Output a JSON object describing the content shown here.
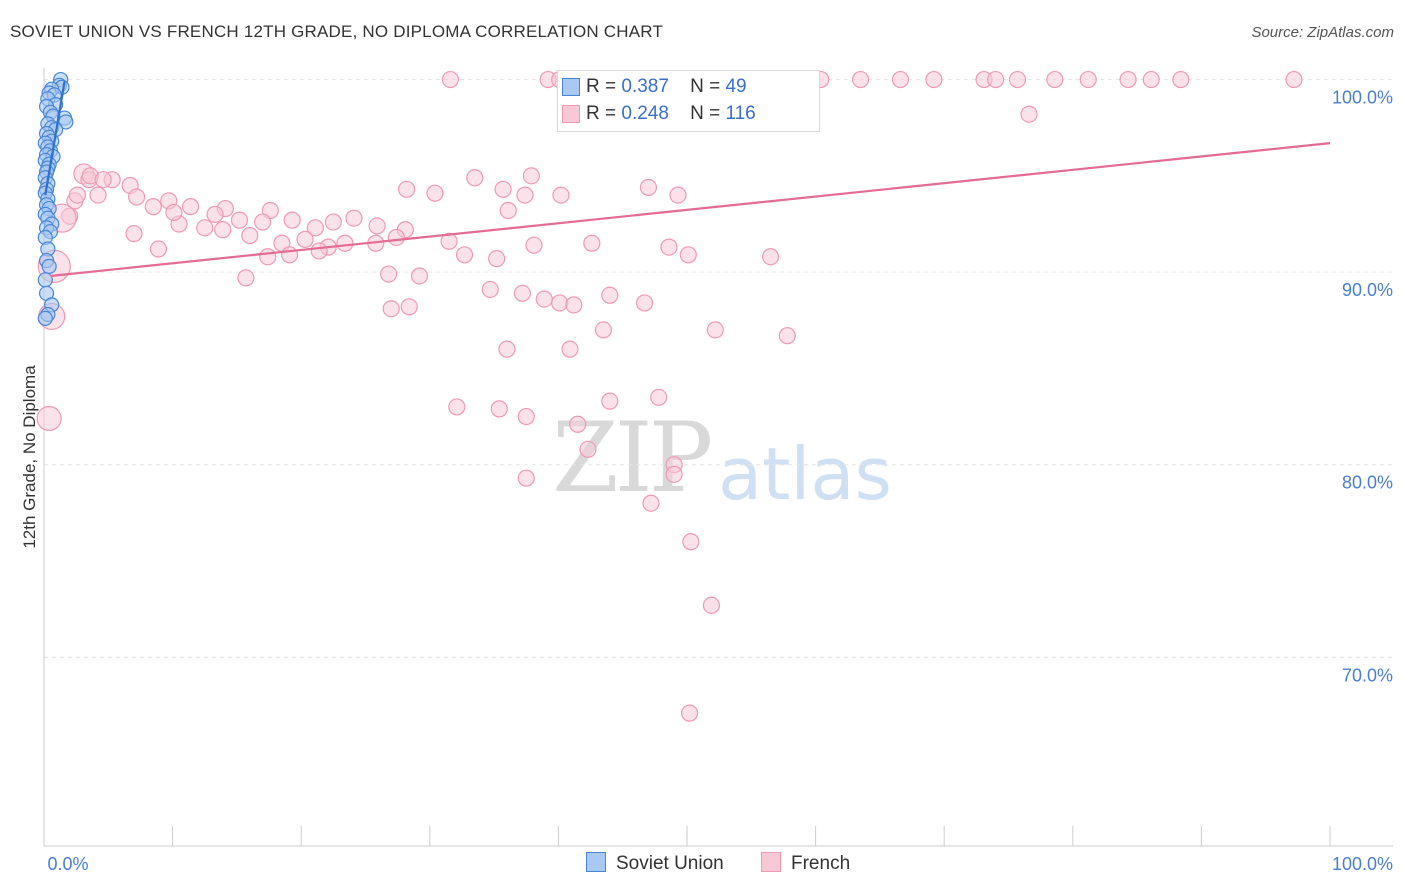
{
  "title": "SOVIET UNION VS FRENCH 12TH GRADE, NO DIPLOMA CORRELATION CHART",
  "source": "Source: ZipAtlas.com",
  "watermark": {
    "zip": "ZIP",
    "atlas": "atlas"
  },
  "legend": {
    "r_label": "R =",
    "n_label": "N =",
    "soviet": {
      "r": "0.387",
      "n": "49"
    },
    "french": {
      "r": "0.248",
      "n": "116"
    }
  },
  "bottom_legend": {
    "soviet": "Soviet Union",
    "french": "French"
  },
  "colors": {
    "soviet_fill": "#a9c8f2",
    "soviet_stroke": "#4a86d8",
    "soviet_line": "#2f6fd0",
    "french_fill": "#f7c9d7",
    "french_stroke": "#ee9ab4",
    "french_line": "#e46b93",
    "tick_label": "#4a7fd0",
    "grid": "#e6e6e6"
  },
  "chart_data": {
    "type": "scatter",
    "title": "SOVIET UNION VS FRENCH 12TH GRADE, NO DIPLOMA CORRELATION CHART",
    "xlabel": "",
    "ylabel": "12th Grade, No Diploma",
    "x_range": [
      0,
      100
    ],
    "y_range": [
      60.2,
      100.6
    ],
    "x_tick_labels": [
      "0.0%",
      "100.0%"
    ],
    "y_ticks": [
      {
        "value": 100,
        "label": "100.0%"
      },
      {
        "value": 90,
        "label": "90.0%"
      },
      {
        "value": 80,
        "label": "80.0%"
      },
      {
        "value": 70,
        "label": "70.0%"
      }
    ],
    "series": [
      {
        "name": "Soviet Union",
        "trend": {
          "x": [
            0.1,
            1.6
          ],
          "y": [
            94.0,
            99.9
          ]
        },
        "points": [
          [
            1.3,
            100.0
          ],
          [
            1.2,
            99.7
          ],
          [
            1.4,
            99.6
          ],
          [
            0.6,
            99.5
          ],
          [
            0.4,
            99.3
          ],
          [
            0.8,
            99.2
          ],
          [
            0.3,
            99.0
          ],
          [
            0.9,
            98.7
          ],
          [
            0.2,
            98.6
          ],
          [
            0.5,
            98.3
          ],
          [
            0.7,
            98.1
          ],
          [
            1.6,
            98.0
          ],
          [
            1.7,
            97.8
          ],
          [
            0.3,
            97.7
          ],
          [
            0.6,
            97.5
          ],
          [
            0.9,
            97.4
          ],
          [
            0.2,
            97.2
          ],
          [
            0.4,
            97.0
          ],
          [
            0.6,
            96.8
          ],
          [
            0.1,
            96.7
          ],
          [
            0.3,
            96.5
          ],
          [
            0.5,
            96.3
          ],
          [
            0.2,
            96.1
          ],
          [
            0.7,
            96.0
          ],
          [
            0.1,
            95.8
          ],
          [
            0.4,
            95.6
          ],
          [
            0.3,
            95.4
          ],
          [
            0.2,
            95.2
          ],
          [
            0.1,
            94.9
          ],
          [
            0.3,
            94.6
          ],
          [
            0.2,
            94.3
          ],
          [
            0.1,
            94.1
          ],
          [
            0.3,
            93.8
          ],
          [
            0.2,
            93.5
          ],
          [
            0.4,
            93.3
          ],
          [
            0.1,
            93.0
          ],
          [
            0.3,
            92.8
          ],
          [
            0.6,
            92.5
          ],
          [
            0.2,
            92.3
          ],
          [
            0.5,
            92.1
          ],
          [
            0.1,
            91.8
          ],
          [
            0.3,
            91.2
          ],
          [
            0.2,
            90.6
          ],
          [
            0.4,
            90.3
          ],
          [
            0.1,
            89.6
          ],
          [
            0.2,
            88.9
          ],
          [
            0.6,
            88.3
          ],
          [
            0.3,
            87.8
          ],
          [
            0.1,
            87.6
          ]
        ]
      },
      {
        "name": "French",
        "trend": {
          "x": [
            0.5,
            100
          ],
          "y": [
            89.8,
            96.7
          ]
        },
        "points": [
          [
            31.6,
            100.0
          ],
          [
            39.2,
            100.0
          ],
          [
            40.1,
            100.0
          ],
          [
            45.4,
            100.0
          ],
          [
            47.0,
            100.0
          ],
          [
            49.6,
            100.0
          ],
          [
            53.9,
            100.0
          ],
          [
            57.0,
            100.0
          ],
          [
            60.4,
            100.0
          ],
          [
            63.5,
            100.0
          ],
          [
            66.6,
            100.0
          ],
          [
            69.2,
            100.0
          ],
          [
            73.1,
            100.0
          ],
          [
            74.0,
            100.0
          ],
          [
            75.7,
            100.0
          ],
          [
            78.6,
            100.0
          ],
          [
            81.2,
            100.0
          ],
          [
            84.3,
            100.0
          ],
          [
            86.1,
            100.0
          ],
          [
            88.4,
            100.0
          ],
          [
            97.2,
            100.0
          ],
          [
            76.6,
            98.2
          ],
          [
            33.5,
            94.9
          ],
          [
            37.9,
            95.0
          ],
          [
            35.7,
            94.3
          ],
          [
            47.0,
            94.4
          ],
          [
            49.3,
            94.0
          ],
          [
            40.2,
            94.0
          ],
          [
            37.4,
            94.0
          ],
          [
            28.2,
            94.3
          ],
          [
            30.4,
            94.1
          ],
          [
            36.1,
            93.2
          ],
          [
            14.1,
            93.3
          ],
          [
            17.6,
            93.2
          ],
          [
            11.4,
            93.4
          ],
          [
            8.5,
            93.4
          ],
          [
            13.3,
            93.0
          ],
          [
            15.2,
            92.7
          ],
          [
            17.0,
            92.6
          ],
          [
            19.3,
            92.7
          ],
          [
            21.1,
            92.3
          ],
          [
            22.5,
            92.6
          ],
          [
            24.1,
            92.8
          ],
          [
            25.9,
            92.4
          ],
          [
            28.1,
            92.2
          ],
          [
            6.7,
            94.5
          ],
          [
            5.3,
            94.8
          ],
          [
            7.2,
            93.9
          ],
          [
            9.7,
            93.7
          ],
          [
            4.2,
            94.0
          ],
          [
            3.1,
            95.1
          ],
          [
            3.5,
            94.8
          ],
          [
            2.4,
            93.7
          ],
          [
            2.0,
            92.9
          ],
          [
            7.0,
            92.0
          ],
          [
            12.5,
            92.3
          ],
          [
            10.5,
            92.5
          ],
          [
            13.9,
            92.2
          ],
          [
            16.0,
            91.9
          ],
          [
            18.5,
            91.5
          ],
          [
            20.3,
            91.7
          ],
          [
            22.1,
            91.3
          ],
          [
            23.4,
            91.5
          ],
          [
            25.8,
            91.5
          ],
          [
            27.4,
            91.8
          ],
          [
            31.5,
            91.6
          ],
          [
            32.7,
            90.9
          ],
          [
            35.2,
            90.7
          ],
          [
            38.1,
            91.4
          ],
          [
            42.6,
            91.5
          ],
          [
            48.6,
            91.3
          ],
          [
            50.1,
            90.9
          ],
          [
            56.5,
            90.8
          ],
          [
            8.9,
            91.2
          ],
          [
            17.4,
            90.8
          ],
          [
            19.1,
            90.9
          ],
          [
            21.4,
            91.1
          ],
          [
            15.7,
            89.7
          ],
          [
            26.8,
            89.9
          ],
          [
            29.2,
            89.8
          ],
          [
            34.7,
            89.1
          ],
          [
            37.2,
            88.9
          ],
          [
            38.9,
            88.6
          ],
          [
            40.1,
            88.4
          ],
          [
            41.2,
            88.3
          ],
          [
            27.0,
            88.1
          ],
          [
            28.4,
            88.2
          ],
          [
            44.0,
            88.8
          ],
          [
            46.7,
            88.4
          ],
          [
            52.2,
            87.0
          ],
          [
            57.8,
            86.7
          ],
          [
            43.5,
            87.0
          ],
          [
            36.0,
            86.0
          ],
          [
            40.9,
            86.0
          ],
          [
            35.4,
            82.9
          ],
          [
            32.1,
            83.0
          ],
          [
            37.5,
            82.5
          ],
          [
            41.5,
            82.1
          ],
          [
            42.3,
            80.8
          ],
          [
            44.0,
            83.3
          ],
          [
            47.8,
            83.5
          ],
          [
            49.0,
            80.0
          ],
          [
            49.0,
            79.5
          ],
          [
            37.5,
            79.3
          ],
          [
            47.2,
            78.0
          ],
          [
            50.3,
            76.0
          ],
          [
            51.9,
            72.7
          ],
          [
            50.2,
            67.1
          ],
          [
            0.4,
            82.4
          ],
          [
            0.8,
            90.3
          ],
          [
            0.6,
            87.7
          ],
          [
            1.4,
            92.8
          ],
          [
            2.6,
            94.0
          ],
          [
            3.6,
            95.0
          ],
          [
            4.6,
            94.8
          ],
          [
            10.1,
            93.1
          ]
        ]
      }
    ]
  }
}
